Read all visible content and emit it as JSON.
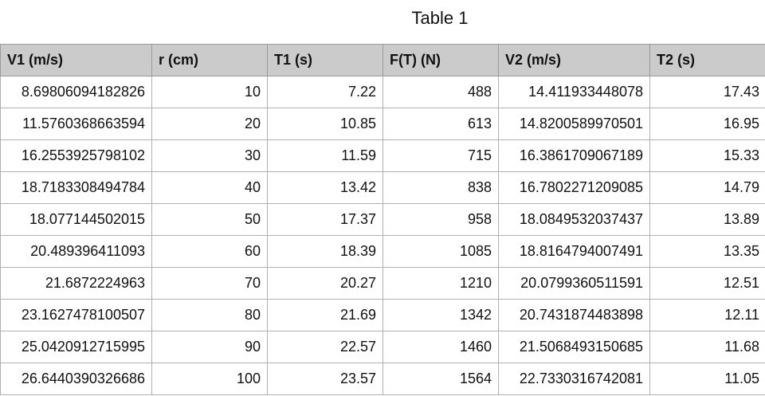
{
  "title": "Table 1",
  "table": {
    "header": [
      "V1 (m/s)",
      "r (cm)",
      "T1 (s)",
      "F(T) (N)",
      "V2 (m/s)",
      "T2 (s)"
    ],
    "rows": [
      [
        "8.69806094182826",
        "10",
        "7.22",
        "488",
        "14.411933448078",
        "17.43"
      ],
      [
        "11.5760368663594",
        "20",
        "10.85",
        "613",
        "14.8200589970501",
        "16.95"
      ],
      [
        "16.2553925798102",
        "30",
        "11.59",
        "715",
        "16.3861709067189",
        "15.33"
      ],
      [
        "18.7183308494784",
        "40",
        "13.42",
        "838",
        "16.7802271209085",
        "14.79"
      ],
      [
        "18.077144502015",
        "50",
        "17.37",
        "958",
        "18.0849532037437",
        "13.89"
      ],
      [
        "20.489396411093",
        "60",
        "18.39",
        "1085",
        "18.8164794007491",
        "13.35"
      ],
      [
        "21.6872224963",
        "70",
        "20.27",
        "1210",
        "20.0799360511591",
        "12.51"
      ],
      [
        "23.1627478100507",
        "80",
        "21.69",
        "1342",
        "20.7431874483898",
        "12.11"
      ],
      [
        "25.0420912715995",
        "90",
        "22.57",
        "1460",
        "21.5068493150685",
        "11.68"
      ],
      [
        "26.6440390326686",
        "100",
        "23.57",
        "1564",
        "22.7330316742081",
        "11.05"
      ]
    ]
  }
}
